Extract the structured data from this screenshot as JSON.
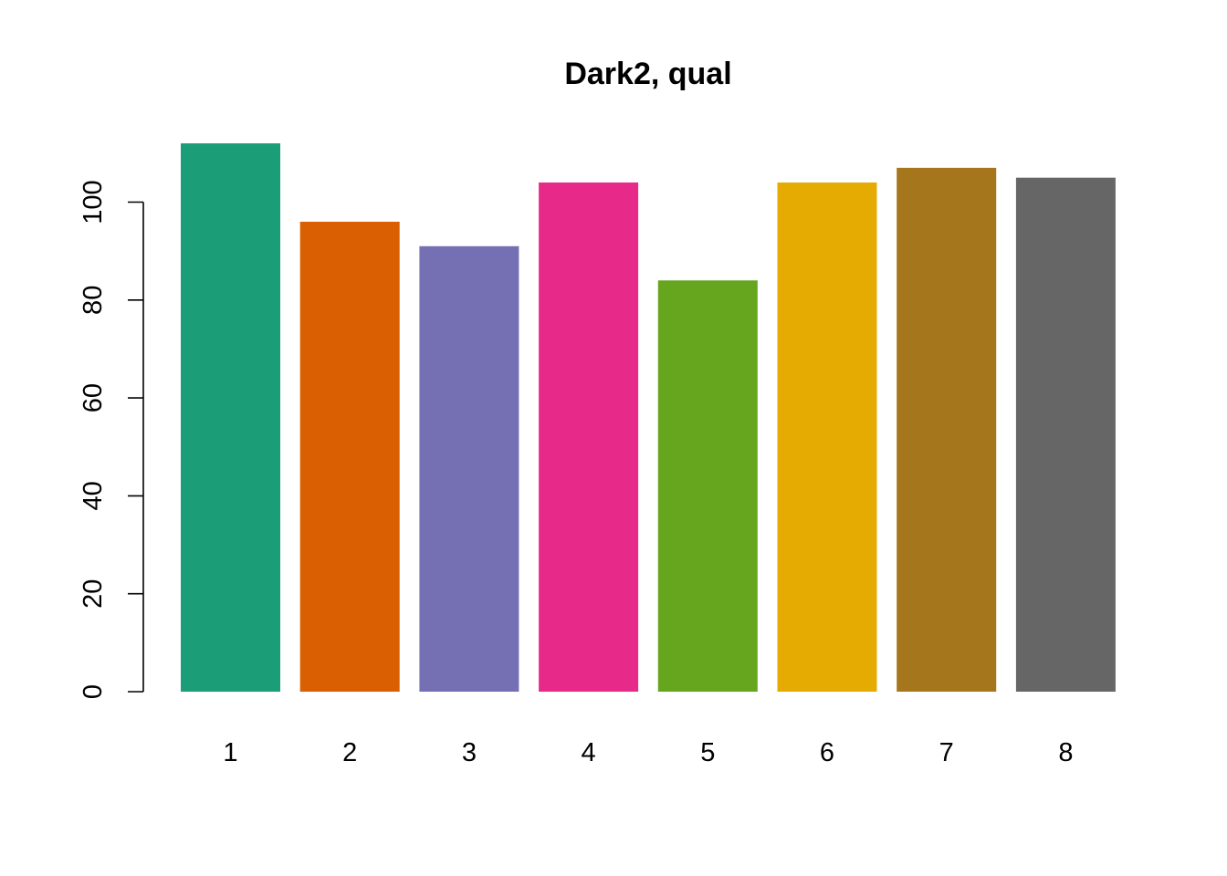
{
  "chart_data": {
    "type": "bar",
    "title": "Dark2, qual",
    "xlabel": "",
    "ylabel": "",
    "categories": [
      "1",
      "2",
      "3",
      "4",
      "5",
      "6",
      "7",
      "8"
    ],
    "values": [
      112,
      96,
      91,
      104,
      84,
      104,
      107,
      105
    ],
    "colors": [
      "#1B9E77",
      "#D95F02",
      "#7570B3",
      "#E7298A",
      "#66A61E",
      "#E6AB02",
      "#A6761D",
      "#666666"
    ],
    "ylim": [
      0,
      112
    ],
    "yticks": [
      0,
      20,
      40,
      60,
      80,
      100
    ],
    "grid": false,
    "legend": "none"
  }
}
